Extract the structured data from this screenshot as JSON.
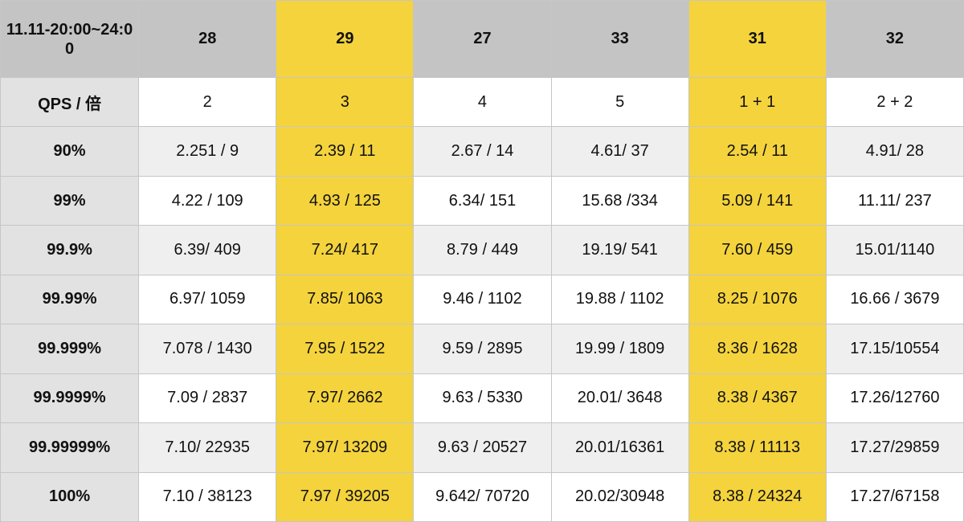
{
  "table": {
    "corner_label": "11.11-20:00~24:00",
    "columns": [
      {
        "label": "28",
        "highlight": false
      },
      {
        "label": "29",
        "highlight": true
      },
      {
        "label": "27",
        "highlight": false
      },
      {
        "label": "33",
        "highlight": false
      },
      {
        "label": "31",
        "highlight": true
      },
      {
        "label": "32",
        "highlight": false
      }
    ],
    "rows": [
      {
        "label": "QPS / 倍",
        "cells": [
          "2",
          "3",
          "4",
          "5",
          "1 + 1",
          "2 + 2"
        ]
      },
      {
        "label": "90%",
        "cells": [
          "2.251 / 9",
          "2.39 / 11",
          "2.67 / 14",
          "4.61/ 37",
          "2.54 / 11",
          "4.91/ 28"
        ]
      },
      {
        "label": "99%",
        "cells": [
          "4.22 / 109",
          "4.93 / 125",
          "6.34/ 151",
          "15.68 /334",
          "5.09 / 141",
          "11.11/ 237"
        ]
      },
      {
        "label": "99.9%",
        "cells": [
          "6.39/ 409",
          "7.24/ 417",
          "8.79 / 449",
          "19.19/ 541",
          "7.60 / 459",
          "15.01/1140"
        ]
      },
      {
        "label": "99.99%",
        "cells": [
          "6.97/ 1059",
          "7.85/ 1063",
          "9.46 / 1102",
          "19.88 / 1102",
          "8.25 / 1076",
          "16.66 / 3679"
        ]
      },
      {
        "label": "99.999%",
        "cells": [
          "7.078 / 1430",
          "7.95 / 1522",
          "9.59 / 2895",
          "19.99 / 1809",
          "8.36 / 1628",
          "17.15/10554"
        ]
      },
      {
        "label": "99.9999%",
        "cells": [
          "7.09 / 2837",
          "7.97/ 2662",
          "9.63 / 5330",
          "20.01/ 3648",
          "8.38 / 4367",
          "17.26/12760"
        ]
      },
      {
        "label": "99.99999%",
        "cells": [
          "7.10/ 22935",
          "7.97/ 13209",
          "9.63 / 20527",
          "20.01/16361",
          "8.38 / 11113",
          "17.27/29859"
        ]
      },
      {
        "label": "100%",
        "cells": [
          "7.10 / 38123",
          "7.97 / 39205",
          "9.642/ 70720",
          "20.02/30948",
          "8.38 / 24324",
          "17.27/67158"
        ]
      }
    ],
    "colors": {
      "header_bg": "#c4c4c4",
      "highlight": "#f4d33d",
      "row_alt": "#efefef",
      "row_head": "#e2e2e2"
    }
  }
}
